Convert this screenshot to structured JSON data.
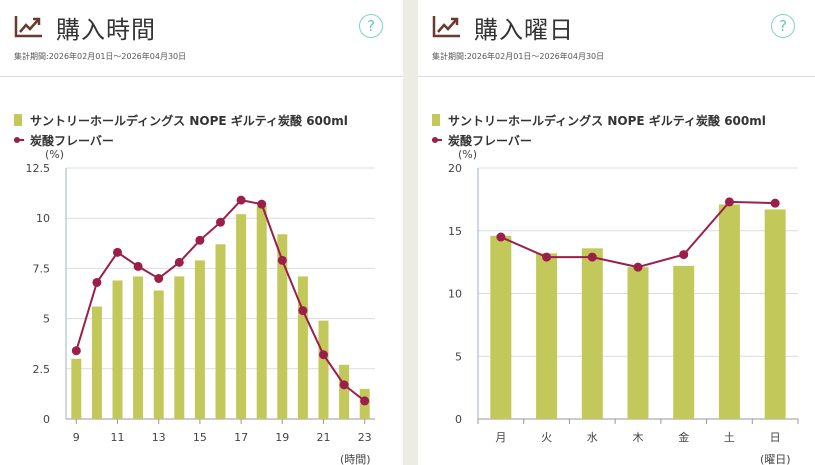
{
  "panels": [
    {
      "title": "購入時間",
      "period": "集計期間:2026年02月01日～2026年04月30日",
      "help": "?",
      "legend": {
        "bar": "サントリーホールディングス NOPE ギルティ炭酸 600ml",
        "line": "炭酸フレーバー"
      },
      "y_unit": "(%)",
      "x_unit": "(時間)"
    },
    {
      "title": "購入曜日",
      "period": "集計期間:2026年02月01日～2026年04月30日",
      "help": "?",
      "legend": {
        "bar": "サントリーホールディングス NOPE ギルティ炭酸 600ml",
        "line": "炭酸フレーバー"
      },
      "y_unit": "(%)",
      "x_unit": "(曜日)"
    }
  ],
  "colors": {
    "bar": "#c2c95a",
    "line": "#9b1f4a",
    "icon": "#6b3a2e",
    "help": "#7fd3cc"
  },
  "icons": {
    "title": "trend-chart-icon",
    "help": "question-circle-icon"
  },
  "chart_data": [
    {
      "type": "bar",
      "categories": [
        "9",
        "10",
        "11",
        "12",
        "13",
        "14",
        "15",
        "16",
        "17",
        "18",
        "19",
        "20",
        "21",
        "22",
        "23"
      ],
      "x_tick_labels": [
        "9",
        "11",
        "13",
        "15",
        "17",
        "19",
        "21",
        "23"
      ],
      "y_ticks": [
        "0",
        "2.5",
        "5",
        "7.5",
        "10",
        "12.5"
      ],
      "ylim": [
        0,
        12.5
      ],
      "ylabel": "(%)",
      "xlabel": "(時間)",
      "grid": true,
      "legend": "top-left",
      "series": [
        {
          "name": "サントリーホールディングス NOPE ギルティ炭酸 600ml",
          "kind": "bar",
          "values": [
            3.0,
            5.6,
            6.9,
            7.1,
            6.4,
            7.1,
            7.9,
            8.7,
            10.2,
            10.6,
            9.2,
            7.1,
            4.9,
            2.7,
            1.5
          ]
        },
        {
          "name": "炭酸フレーバー",
          "kind": "line",
          "values": [
            3.4,
            6.8,
            8.3,
            7.6,
            7.0,
            7.8,
            8.9,
            9.8,
            10.9,
            10.7,
            7.9,
            5.4,
            3.2,
            1.7,
            0.9
          ]
        }
      ]
    },
    {
      "type": "bar",
      "categories": [
        "月",
        "火",
        "水",
        "木",
        "金",
        "土",
        "日"
      ],
      "x_tick_labels": [
        "月",
        "火",
        "水",
        "木",
        "金",
        "土",
        "日"
      ],
      "y_ticks": [
        "0",
        "5",
        "10",
        "15",
        "20"
      ],
      "ylim": [
        0,
        20
      ],
      "ylabel": "(%)",
      "xlabel": "(曜日)",
      "grid": true,
      "legend": "top-left",
      "series": [
        {
          "name": "サントリーホールディングス NOPE ギルティ炭酸 600ml",
          "kind": "bar",
          "values": [
            14.6,
            13.2,
            13.6,
            12.1,
            12.2,
            17.1,
            16.7
          ]
        },
        {
          "name": "炭酸フレーバー",
          "kind": "line",
          "values": [
            14.5,
            12.9,
            12.9,
            12.1,
            13.1,
            17.3,
            17.2
          ]
        }
      ]
    }
  ]
}
